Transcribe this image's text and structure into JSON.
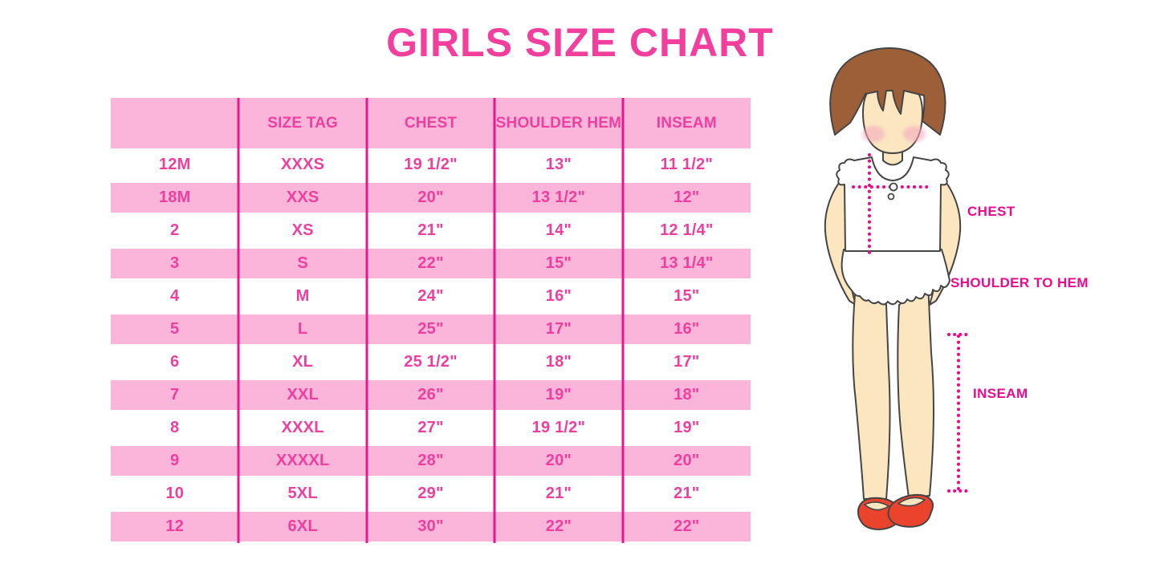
{
  "title": "GIRLS SIZE CHART",
  "chart_data": {
    "type": "table",
    "title": "GIRLS SIZE CHART",
    "columns": [
      "",
      "SIZE TAG",
      "CHEST",
      "SHOULDER HEM",
      "INSEAM"
    ],
    "rows": [
      [
        "12M",
        "XXXS",
        "19 1/2\"",
        "13\"",
        "11 1/2\""
      ],
      [
        "18M",
        "XXS",
        "20\"",
        "13 1/2\"",
        "12\""
      ],
      [
        "2",
        "XS",
        "21\"",
        "14\"",
        "12 1/4\""
      ],
      [
        "3",
        "S",
        "22\"",
        "15\"",
        "13 1/4\""
      ],
      [
        "4",
        "M",
        "24\"",
        "16\"",
        "15\""
      ],
      [
        "5",
        "L",
        "25\"",
        "17\"",
        "16\""
      ],
      [
        "6",
        "XL",
        "25 1/2\"",
        "18\"",
        "17\""
      ],
      [
        "7",
        "XXL",
        "26\"",
        "19\"",
        "18\""
      ],
      [
        "8",
        "XXXL",
        "27\"",
        "19 1/2\"",
        "19\""
      ],
      [
        "9",
        "XXXXL",
        "28\"",
        "20\"",
        "20\""
      ],
      [
        "10",
        "5XL",
        "29\"",
        "21\"",
        "21\""
      ],
      [
        "12",
        "6XL",
        "30\"",
        "22\"",
        "22\""
      ]
    ],
    "layout": {
      "row_striping": "pink-white alternating",
      "grid": "vertical magenta column dividers only"
    }
  },
  "diagram": {
    "labels": {
      "chest": "CHEST",
      "shoulder_to_hem": "SHOULDER TO HEM",
      "inseam": "INSEAM"
    }
  },
  "colors": {
    "title_pink": "#F23F9E",
    "row_pink": "#FBB5DB",
    "divider_magenta": "#E9168C",
    "table_text_pink": "#EE3F9E",
    "label_magenta": "#EB0A8C",
    "hair_brown": "#9D5F38",
    "skin": "#FBE6C0",
    "shoe_red": "#EA452C",
    "outline": "#454545"
  }
}
